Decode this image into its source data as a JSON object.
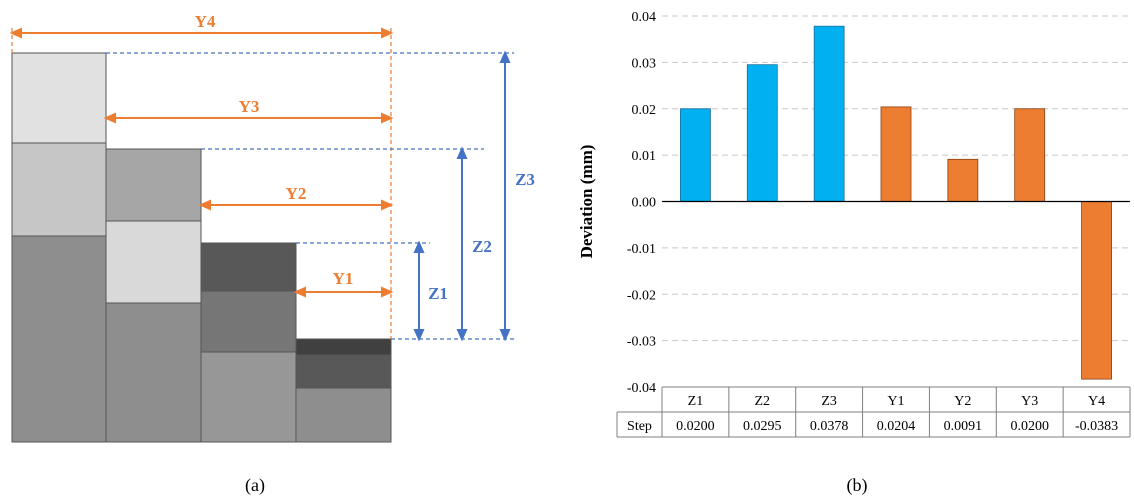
{
  "panel_a": {
    "caption": "(a)",
    "colors": {
      "orange": "#ED7D31",
      "blue": "#4472C4"
    },
    "dimensions": [
      {
        "label": "Y4",
        "axis": "horizontal"
      },
      {
        "label": "Y3",
        "axis": "horizontal"
      },
      {
        "label": "Y2",
        "axis": "horizontal"
      },
      {
        "label": "Y1",
        "axis": "horizontal"
      },
      {
        "label": "Z1",
        "axis": "vertical"
      },
      {
        "label": "Z2",
        "axis": "vertical"
      },
      {
        "label": "Z3",
        "axis": "vertical"
      }
    ]
  },
  "panel_b": {
    "caption": "(b)",
    "colors": {
      "z_bars": "#00B0F0",
      "y_bars": "#ED7D31",
      "grid": "#C8C8C8"
    },
    "row_header": "Step"
  },
  "chart_data": {
    "type": "bar",
    "title": "",
    "xlabel": "",
    "ylabel": "Deviation (mm)",
    "categories": [
      "Z1",
      "Z2",
      "Z3",
      "Y1",
      "Y2",
      "Y3",
      "Y4"
    ],
    "values": [
      0.02,
      0.0295,
      0.0378,
      0.0204,
      0.0091,
      0.02,
      -0.0383
    ],
    "value_labels": [
      "0.0200",
      "0.0295",
      "0.0378",
      "0.0204",
      "0.0091",
      "0.0200",
      "-0.0383"
    ],
    "ylim": [
      -0.04,
      0.04
    ],
    "yticks": [
      "0.04",
      "0.03",
      "0.02",
      "0.01",
      "0.00",
      "-0.01",
      "-0.02",
      "-0.03",
      "-0.04"
    ],
    "ytick_values": [
      0.04,
      0.03,
      0.02,
      0.01,
      0,
      -0.01,
      -0.02,
      -0.03,
      -0.04
    ],
    "grid": true,
    "legend": "none"
  }
}
